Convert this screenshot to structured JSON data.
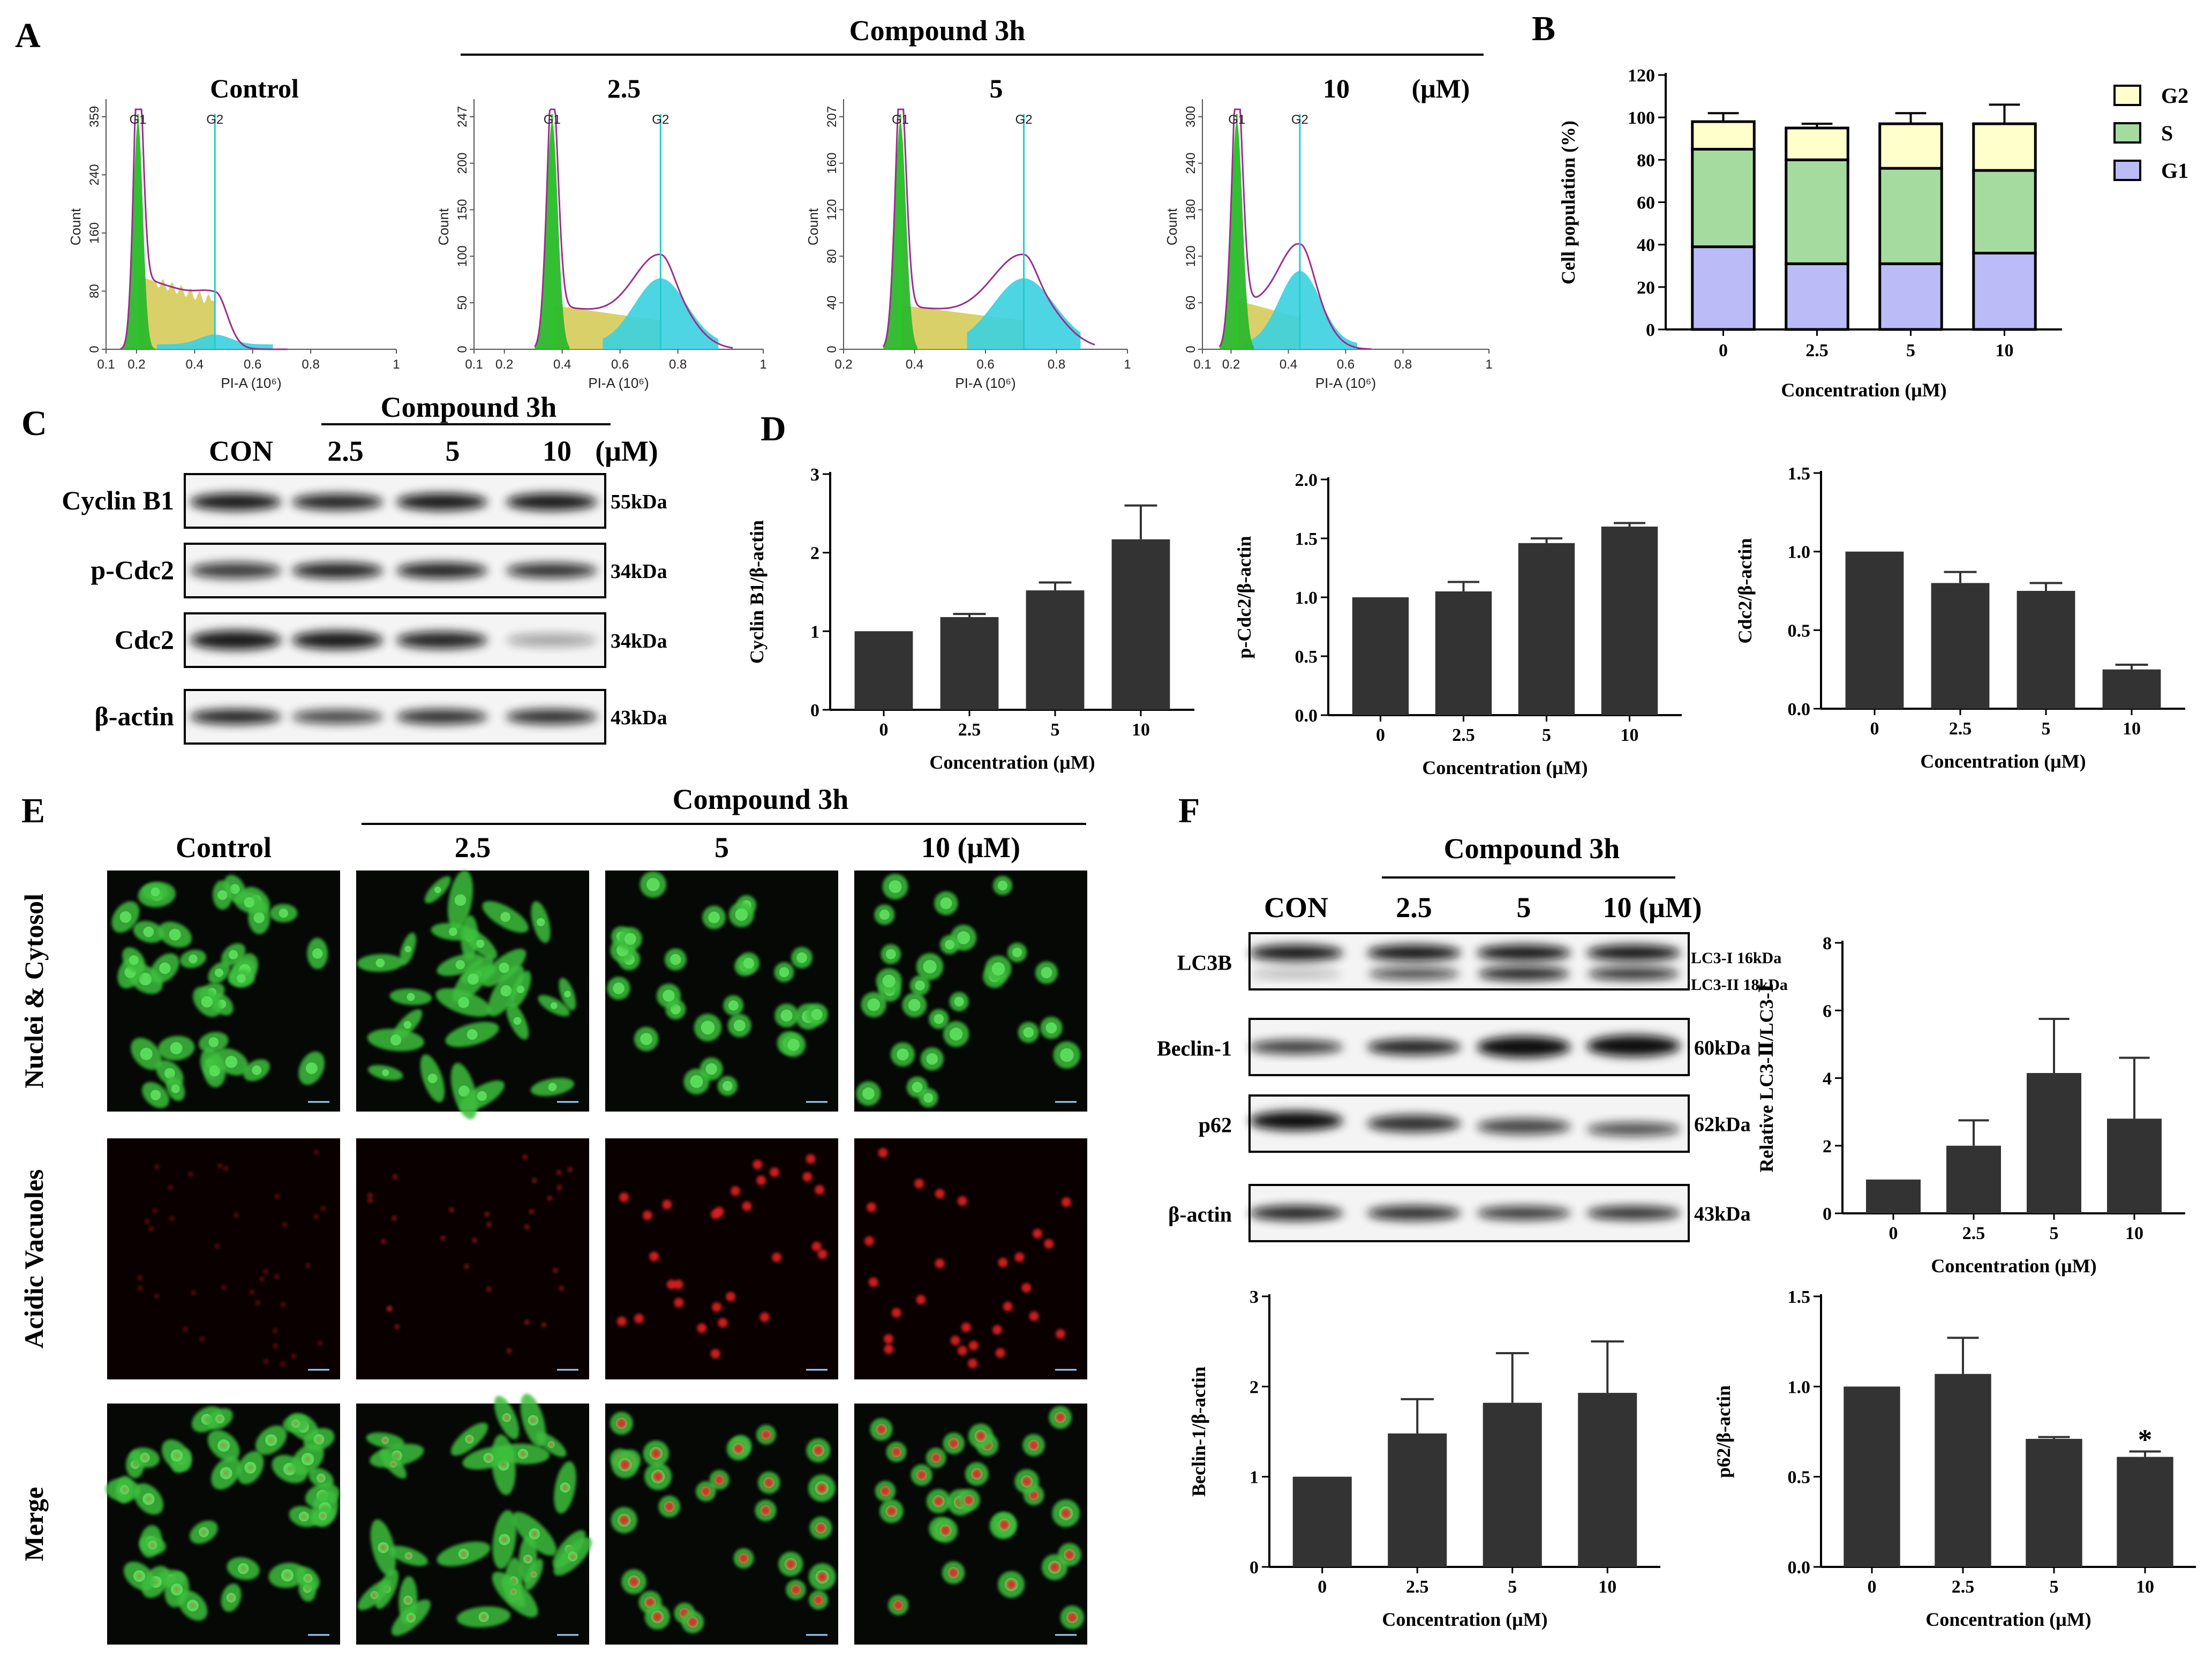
{
  "labels": {
    "panel_a": "A",
    "panel_b": "B",
    "panel_c": "C",
    "panel_d": "D",
    "panel_e": "E",
    "panel_f": "F",
    "compound": "Compound 3h",
    "control": "Control",
    "con": "CON",
    "um": "(μM)",
    "c25": "2.5",
    "c5": "5",
    "c10": "10",
    "c10um": "10  (μM)",
    "c10umf": "10 (μM)"
  },
  "flow": {
    "panels": [
      {
        "title": "Control",
        "yticks": [
          "0",
          "80",
          "160",
          "240",
          "359"
        ],
        "xticks": [
          "0.1",
          "0.2",
          "0.4",
          "0.6",
          "0.8",
          "1"
        ],
        "g1": "G1",
        "g2": "G2",
        "ylabel": "Count",
        "xlabel": "PI-A (10⁶)"
      },
      {
        "title": "2.5",
        "yticks": [
          "0",
          "50",
          "100",
          "150",
          "200",
          "247"
        ],
        "xticks": [
          "0.1",
          "0.2",
          "0.4",
          "0.6",
          "0.8",
          "1"
        ],
        "g1": "G1",
        "g2": "G2",
        "ylabel": "Count",
        "xlabel": "PI-A (10⁶)"
      },
      {
        "title": "5",
        "yticks": [
          "0",
          "40",
          "80",
          "120",
          "160",
          "207"
        ],
        "xticks": [
          "0.2",
          "0.4",
          "0.6",
          "0.8",
          "1"
        ],
        "g1": "G1",
        "g2": "G2",
        "ylabel": "Count",
        "xlabel": "PI-A (10⁶)"
      },
      {
        "title": "10",
        "yticks": [
          "0",
          "60",
          "120",
          "180",
          "240",
          "300"
        ],
        "xticks": [
          "0.1",
          "0.2",
          "0.4",
          "0.6",
          "0.8",
          "1"
        ],
        "g1": "G1",
        "g2": "G2",
        "ylabel": "Count",
        "xlabel": "PI-A (10⁶)"
      }
    ]
  },
  "westernC": {
    "rows": [
      {
        "label": "Cyclin B1",
        "kda": "55kDa"
      },
      {
        "label": "p-Cdc2",
        "kda": "34kDa"
      },
      {
        "label": "Cdc2",
        "kda": "34kDa"
      },
      {
        "label": "β-actin",
        "kda": "43kDa"
      }
    ],
    "lanes": [
      "CON",
      "2.5",
      "5",
      "10",
      "(μM)"
    ]
  },
  "westernF": {
    "rows": [
      {
        "label": "LC3B",
        "kda": "",
        "kda_a": "LC3-I  16kDa",
        "kda_b": "LC3-II  18kDa"
      },
      {
        "label": "Beclin-1",
        "kda": "60kDa"
      },
      {
        "label": "p62",
        "kda": "62kDa"
      },
      {
        "label": "β-actin",
        "kda": "43kDa"
      }
    ],
    "lanes": [
      "CON",
      "2.5",
      "5",
      "10 (μM)"
    ]
  },
  "microscopy": {
    "rows": [
      "Nuclei & Cytosol",
      "Acidic Vacuoles",
      "Merge"
    ],
    "cols": [
      "Control",
      "2.5",
      "5",
      "10  (μM)"
    ]
  },
  "colors": {
    "g2": "#ffffcc",
    "s": "#a6dba0",
    "g1": "#bbbbf7",
    "bar": "#333333",
    "fc_g1": "#2db82d",
    "fc_s": "#d4c850",
    "fc_g2": "#3ad0e0",
    "fc_line": "#9a2f8e"
  },
  "chart_data": [
    {
      "id": "B",
      "type": "bar",
      "stacked": true,
      "categories": [
        "0",
        "2.5",
        "5",
        "10"
      ],
      "series": [
        {
          "name": "G1",
          "values": [
            39,
            31,
            31,
            36
          ],
          "errors": [
            5,
            4,
            2,
            3
          ]
        },
        {
          "name": "S",
          "values": [
            46,
            49,
            45,
            39
          ],
          "errors": [
            2,
            6,
            4,
            11
          ]
        },
        {
          "name": "G2",
          "values": [
            13,
            15,
            21,
            22
          ],
          "errors": [
            4,
            2,
            5,
            9
          ]
        }
      ],
      "xlabel": "Concentration (μM)",
      "ylabel": "Cell population (%)",
      "ylim": [
        0,
        120
      ],
      "yticks": [
        0,
        20,
        40,
        60,
        80,
        100,
        120
      ],
      "legend": "right"
    },
    {
      "id": "D1",
      "type": "bar",
      "categories": [
        "0",
        "2.5",
        "5",
        "10"
      ],
      "values": [
        1.0,
        1.18,
        1.52,
        2.17
      ],
      "errors": [
        0,
        0.04,
        0.1,
        0.43
      ],
      "xlabel": "Concentration (μM)",
      "ylabel": "Cyclin B1/β-actin",
      "ylim": [
        0,
        3
      ],
      "yticks": [
        0,
        1,
        2,
        3
      ],
      "ytick_labels": [
        "0",
        "1",
        "2",
        "3"
      ]
    },
    {
      "id": "D2",
      "type": "bar",
      "categories": [
        "0",
        "2.5",
        "5",
        "10"
      ],
      "values": [
        1.0,
        1.05,
        1.46,
        1.6
      ],
      "errors": [
        0,
        0.08,
        0.04,
        0.03
      ],
      "xlabel": "Concentration (μM)",
      "ylabel": "p-Cdc2/β-actin",
      "ylim": [
        0,
        2.0
      ],
      "yticks": [
        0,
        0.5,
        1,
        1.5,
        2
      ],
      "ytick_labels": [
        "0.0",
        "0.5",
        "1.0",
        "1.5",
        "2.0"
      ]
    },
    {
      "id": "D3",
      "type": "bar",
      "categories": [
        "0",
        "2.5",
        "5",
        "10"
      ],
      "values": [
        1.0,
        0.8,
        0.75,
        0.25
      ],
      "errors": [
        0,
        0.07,
        0.05,
        0.03
      ],
      "xlabel": "Concentration (μM)",
      "ylabel": "Cdc2/β-actin",
      "ylim": [
        0,
        1.5
      ],
      "yticks": [
        0,
        0.5,
        1,
        1.5
      ],
      "ytick_labels": [
        "0.0",
        "0.5",
        "1.0",
        "1.5"
      ]
    },
    {
      "id": "F1",
      "type": "bar",
      "categories": [
        "0",
        "2.5",
        "5",
        "10"
      ],
      "values": [
        1.0,
        2.0,
        4.15,
        2.8
      ],
      "errors": [
        0,
        0.75,
        1.6,
        1.8
      ],
      "xlabel": "Concentration (μM)",
      "ylabel": "Relative LC3-Ⅱ/LC3-Ⅰ",
      "ylim": [
        0,
        8
      ],
      "yticks": [
        0,
        2,
        4,
        6,
        8
      ],
      "ytick_labels": [
        "0",
        "2",
        "4",
        "6",
        "8"
      ]
    },
    {
      "id": "F2",
      "type": "bar",
      "categories": [
        "0",
        "2.5",
        "5",
        "10"
      ],
      "values": [
        1.0,
        1.48,
        1.82,
        1.93
      ],
      "errors": [
        0,
        0.38,
        0.55,
        0.57
      ],
      "xlabel": "Concentration (μM)",
      "ylabel": "Beclin-1/β-actin",
      "ylim": [
        0,
        3
      ],
      "yticks": [
        0,
        1,
        2,
        3
      ],
      "ytick_labels": [
        "0",
        "1",
        "2",
        "3"
      ]
    },
    {
      "id": "F3",
      "type": "bar",
      "categories": [
        "0",
        "2.5",
        "5",
        "10"
      ],
      "values": [
        1.0,
        1.07,
        0.71,
        0.61
      ],
      "errors": [
        0,
        0.2,
        0.01,
        0.03
      ],
      "annotations": [
        "",
        "",
        "",
        "*"
      ],
      "xlabel": "Concentration (μM)",
      "ylabel": "p62/β-actin",
      "ylim": [
        0,
        1.5
      ],
      "yticks": [
        0,
        0.5,
        1,
        1.5
      ],
      "ytick_labels": [
        "0.0",
        "0.5",
        "1.0",
        "1.5"
      ]
    }
  ]
}
